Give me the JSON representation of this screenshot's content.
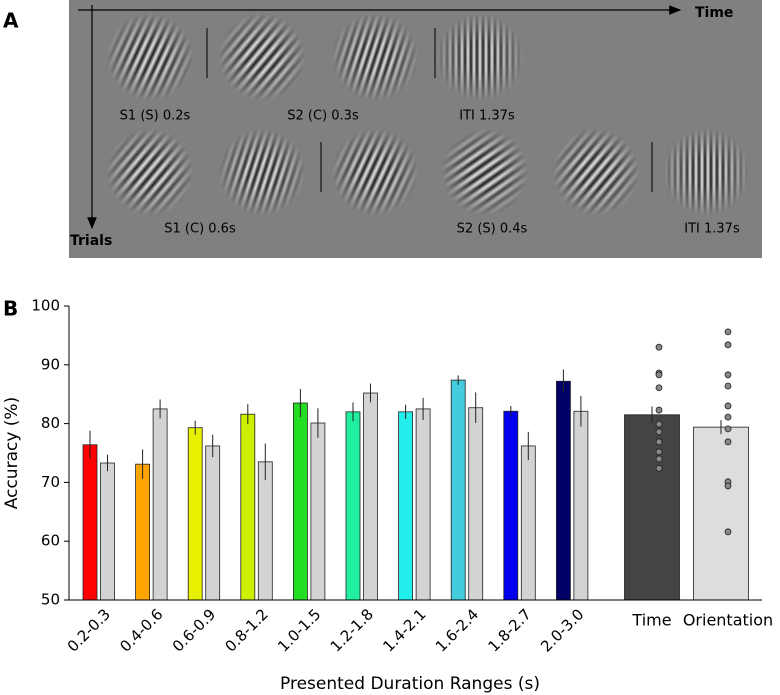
{
  "panel_a": {
    "label": "A",
    "time_label": "Time",
    "trials_label": "Trials",
    "row1": [
      "S1 (S) 0.2s",
      "S2 (C) 0.3s",
      "ITI 1.37s"
    ],
    "row2": [
      "S1 (C) 0.6s",
      "S2 (S) 0.4s",
      "ITI 1.37s"
    ]
  },
  "chart_data": {
    "type": "bar",
    "panel_label": "B",
    "ylabel": "Accuracy (%)",
    "xlabel": "Presented Duration Ranges (s)",
    "ylim": [
      50,
      100
    ],
    "yticks": [
      50,
      60,
      70,
      80,
      90,
      100
    ],
    "categories": [
      "0.2-0.3",
      "0.4-0.6",
      "0.6-0.9",
      "0.8-1.2",
      "1.0-1.5",
      "1.2-1.8",
      "1.4-2.1",
      "1.6-2.4",
      "1.8-2.7",
      "2.0-3.0"
    ],
    "series": [
      {
        "colors": [
          "#ff0000",
          "#ffa500",
          "#e6f000",
          "#ccf000",
          "#22dd22",
          "#22eea0",
          "#22eeee",
          "#44ccdd",
          "#0000ee",
          "#000066"
        ],
        "values": [
          76.4,
          73.1,
          79.3,
          81.6,
          83.5,
          82.0,
          82.0,
          87.4,
          82.1,
          87.2
        ],
        "errors": [
          2.4,
          2.5,
          1.2,
          1.7,
          2.4,
          1.6,
          1.2,
          0.8,
          0.9,
          2.0
        ]
      },
      {
        "color": "#d3d3d3",
        "values": [
          73.3,
          82.5,
          76.2,
          73.5,
          80.1,
          85.2,
          82.5,
          82.7,
          76.2,
          82.1
        ],
        "errors": [
          1.4,
          1.6,
          1.9,
          3.1,
          2.5,
          1.6,
          1.9,
          2.6,
          2.4,
          2.6
        ]
      }
    ],
    "summary": {
      "categories": [
        "Time",
        "Orientation"
      ],
      "colors": [
        "#444444",
        "#dddddd"
      ],
      "values": [
        81.5,
        79.4
      ],
      "errors": [
        1.4,
        1.2
      ],
      "points": [
        [
          93.0,
          88.6,
          88.3,
          86.1,
          82.3,
          79.9,
          78.6,
          76.9,
          75.2,
          74.0,
          72.4
        ],
        [
          95.6,
          93.4,
          88.3,
          86.4,
          83.0,
          81.1,
          79.1,
          76.9,
          70.1,
          69.4,
          61.6
        ]
      ]
    }
  }
}
